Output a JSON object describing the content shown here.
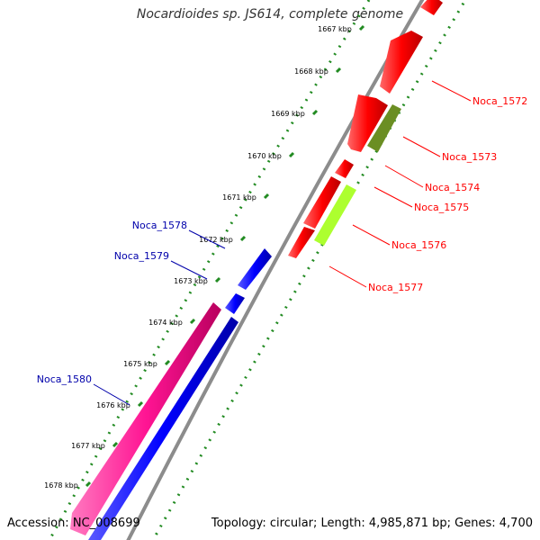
{
  "header": {
    "title": "Nocardioides sp. JS614, complete genome"
  },
  "footer": {
    "accession": "Accession: NC_008699",
    "summary": "Topology: circular; Length: 4,985,871 bp; Genes: 4,700"
  },
  "ruler": {
    "ticks": [
      "1667 kbp",
      "1668 kbp",
      "1669 kbp",
      "1670 kbp",
      "1671 kbp",
      "1672 kbp",
      "1673 kbp",
      "1674 kbp",
      "1675 kbp",
      "1676 kbp",
      "1677 kbp",
      "1678 kbp"
    ]
  },
  "genes_forward": [
    {
      "name": "Noca_1572",
      "color": "#ff0000"
    },
    {
      "name": "Noca_1573",
      "color": "#6b8e23"
    },
    {
      "name": "Noca_1574",
      "color": "#ff0000"
    },
    {
      "name": "Noca_1575",
      "color": "#ff0000"
    },
    {
      "name": "Noca_1576",
      "color": "#adff2f"
    },
    {
      "name": "Noca_1577",
      "color": "#ff0000"
    }
  ],
  "genes_reverse": [
    {
      "name": "Noca_1578",
      "color": "#0000ff"
    },
    {
      "name": "Noca_1579",
      "color": "#0000ff"
    },
    {
      "name": "Noca_1580",
      "color": "#ff1493"
    }
  ],
  "label_colors": {
    "forward": "#ff0000",
    "reverse": "#0000aa"
  }
}
